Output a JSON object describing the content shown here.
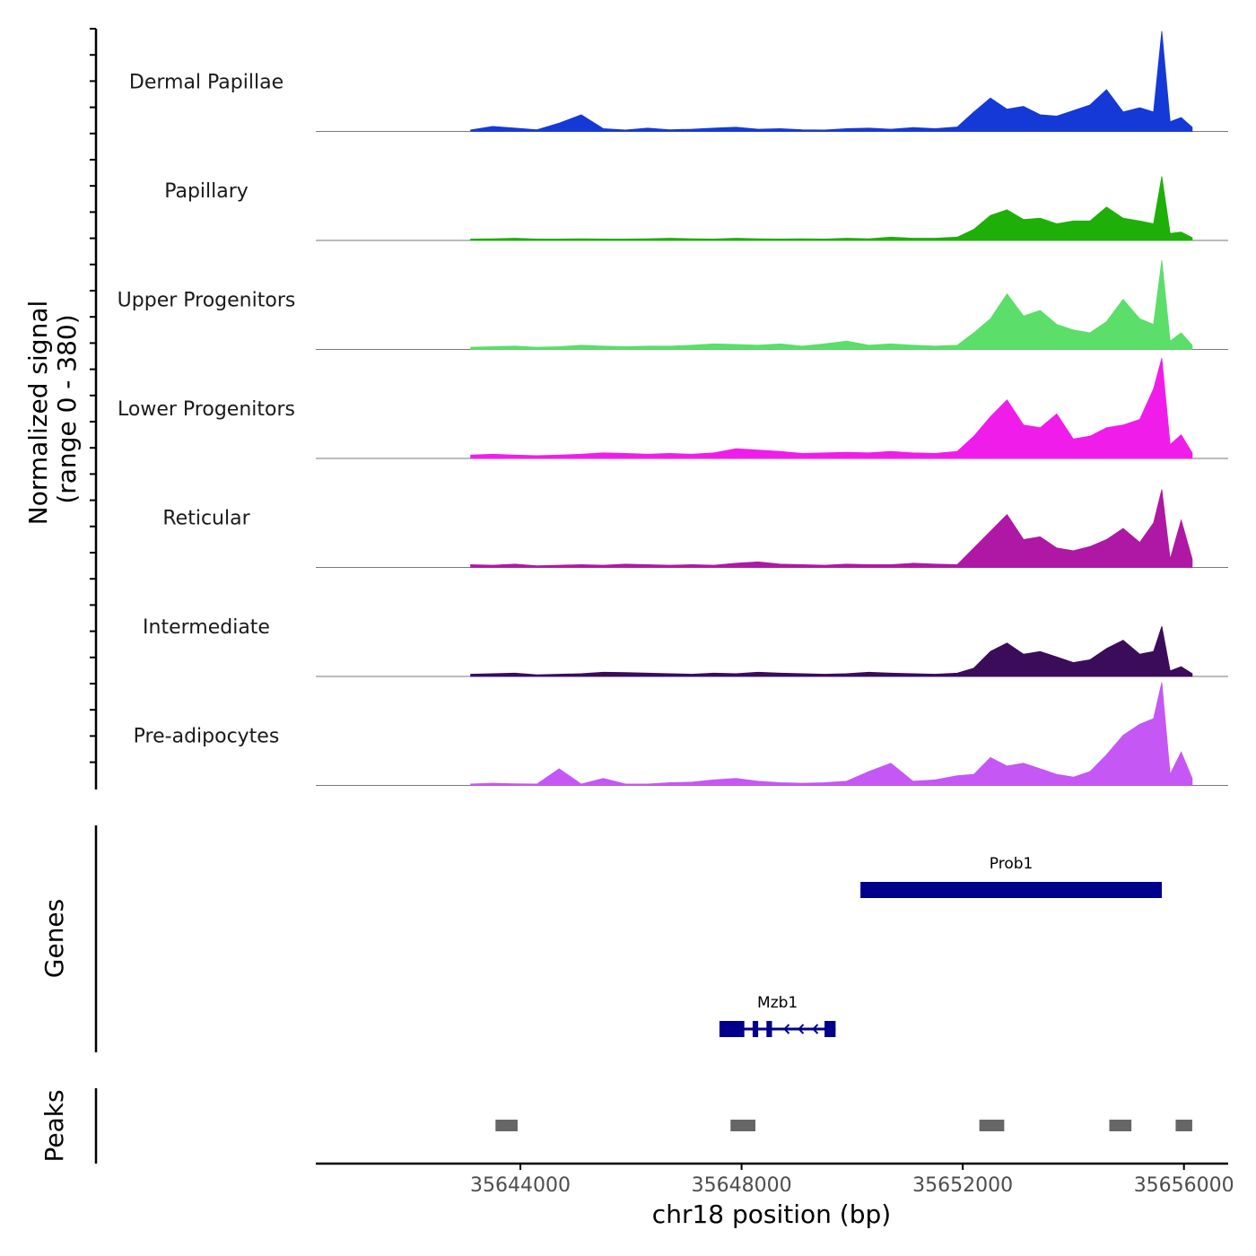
{
  "chart_data": {
    "type": "area",
    "title": "",
    "xlabel": "chr18 position (bp)",
    "ylabel": "Normalized signal",
    "ylabel_range": "(range 0 - 380)",
    "xlim": [
      35640300,
      35656800
    ],
    "ylim": [
      0,
      380
    ],
    "xticks": [
      35644000,
      35648000,
      35652000,
      35656000
    ],
    "x": [
      35643100,
      35643500,
      35643900,
      35644300,
      35644700,
      35645100,
      35645500,
      35645900,
      35646300,
      35646700,
      35647100,
      35647500,
      35647900,
      35648300,
      35648700,
      35649100,
      35649500,
      35649900,
      35650300,
      35650700,
      35651100,
      35651500,
      35651900,
      35652200,
      35652500,
      35652800,
      35653100,
      35653400,
      35653700,
      35654000,
      35654300,
      35654600,
      35654900,
      35655200,
      35655450,
      35655600,
      35655750,
      35655950,
      35656150
    ],
    "series": [
      {
        "name": "Dermal Papillae",
        "color": "#1539D6",
        "values": [
          5,
          18,
          12,
          6,
          30,
          60,
          10,
          5,
          12,
          6,
          8,
          12,
          15,
          8,
          10,
          6,
          5,
          10,
          12,
          8,
          14,
          10,
          16,
          70,
          120,
          80,
          90,
          60,
          55,
          75,
          95,
          150,
          70,
          85,
          70,
          360,
          35,
          50,
          15
        ]
      },
      {
        "name": "Papillary",
        "color": "#1EAF09",
        "values": [
          5,
          6,
          8,
          5,
          5,
          6,
          5,
          5,
          6,
          8,
          6,
          5,
          8,
          6,
          5,
          6,
          5,
          8,
          6,
          12,
          8,
          8,
          12,
          40,
          90,
          110,
          75,
          80,
          60,
          70,
          70,
          120,
          80,
          70,
          60,
          230,
          25,
          30,
          10
        ]
      },
      {
        "name": "Upper Progenitors",
        "color": "#5BDE6A",
        "values": [
          8,
          10,
          12,
          8,
          10,
          15,
          12,
          10,
          12,
          12,
          15,
          20,
          18,
          15,
          20,
          12,
          20,
          30,
          15,
          20,
          15,
          12,
          15,
          60,
          110,
          200,
          120,
          140,
          90,
          70,
          60,
          100,
          180,
          110,
          90,
          320,
          30,
          60,
          15
        ]
      },
      {
        "name": "Lower Progenitors",
        "color": "#F01DEA",
        "values": [
          12,
          15,
          12,
          10,
          12,
          15,
          20,
          18,
          15,
          18,
          15,
          20,
          35,
          30,
          25,
          18,
          20,
          22,
          20,
          25,
          20,
          18,
          25,
          80,
          150,
          210,
          120,
          110,
          160,
          70,
          80,
          110,
          120,
          140,
          250,
          360,
          50,
          85,
          20
        ]
      },
      {
        "name": "Reticular",
        "color": "#AE18A4",
        "values": [
          10,
          8,
          12,
          6,
          8,
          10,
          8,
          12,
          10,
          8,
          10,
          8,
          15,
          20,
          12,
          10,
          8,
          12,
          10,
          10,
          15,
          12,
          10,
          70,
          130,
          190,
          100,
          110,
          70,
          60,
          75,
          100,
          140,
          90,
          160,
          280,
          30,
          170,
          30
        ]
      },
      {
        "name": "Intermediate",
        "color": "#3A0C5A",
        "values": [
          8,
          10,
          12,
          6,
          8,
          10,
          15,
          14,
          12,
          10,
          8,
          12,
          10,
          15,
          12,
          10,
          8,
          10,
          15,
          12,
          10,
          8,
          12,
          30,
          90,
          120,
          80,
          90,
          70,
          50,
          60,
          100,
          130,
          80,
          90,
          180,
          20,
          35,
          10
        ]
      },
      {
        "name": "Pre-adipocytes",
        "color": "#C557F5",
        "values": [
          5,
          8,
          6,
          5,
          60,
          5,
          25,
          5,
          5,
          10,
          12,
          20,
          25,
          15,
          10,
          8,
          10,
          15,
          50,
          80,
          15,
          20,
          35,
          40,
          100,
          70,
          80,
          60,
          40,
          30,
          50,
          110,
          180,
          220,
          240,
          370,
          40,
          120,
          25
        ]
      }
    ],
    "genes": [
      {
        "name": "Prob1",
        "start": 35650150,
        "end": 35655600,
        "strand": "-",
        "exons": [
          [
            35650150,
            35655600
          ]
        ]
      },
      {
        "name": "Mzb1",
        "start": 35647600,
        "end": 35649700,
        "strand": "-",
        "exons": [
          [
            35647600,
            35648050
          ],
          [
            35648200,
            35648300
          ],
          [
            35648450,
            35648550
          ],
          [
            35649500,
            35649700
          ]
        ]
      }
    ],
    "peaks": [
      [
        35643550,
        35643950
      ],
      [
        35647800,
        35648250
      ],
      [
        35652300,
        35652750
      ],
      [
        35654650,
        35655050
      ],
      [
        35655850,
        35656150
      ]
    ]
  },
  "panels": {
    "signal_title": "Normalized signal",
    "signal_range": "(range 0 - 380)",
    "genes_title": "Genes",
    "peaks_title": "Peaks"
  }
}
